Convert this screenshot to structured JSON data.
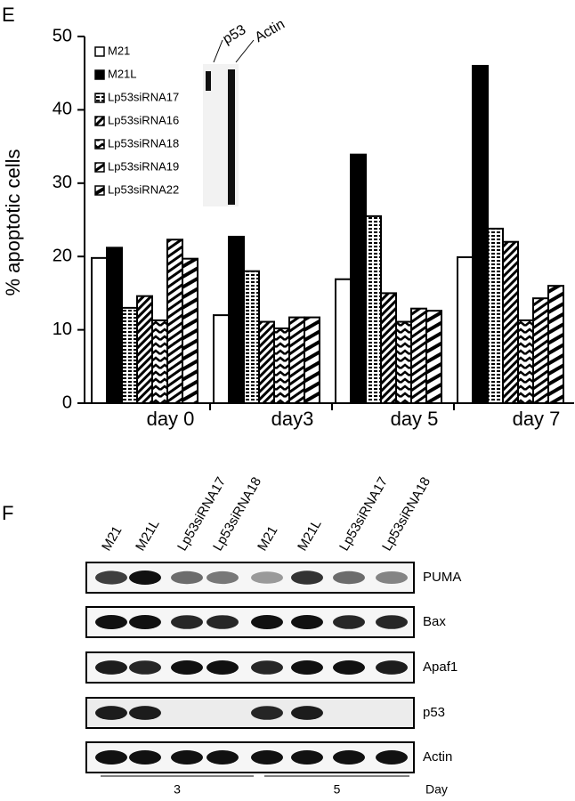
{
  "chart_data": {
    "type": "bar",
    "title": "E",
    "y_label": "% apoptotic cells",
    "categories": [
      "day 0",
      "day3",
      "day 5",
      "day 7"
    ],
    "series": [
      {
        "name": "M21",
        "color": "#ffffff",
        "values": [
          19.8,
          12.0,
          16.9,
          19.9
        ]
      },
      {
        "name": "M21L",
        "color": "#000000",
        "values": [
          21.2,
          22.7,
          33.9,
          46.0
        ]
      },
      {
        "name": "Lp53siRNA17",
        "color": "#000000",
        "hatch": "dots",
        "values": [
          13.0,
          18.0,
          25.5,
          23.8
        ]
      },
      {
        "name": "Lp53siRNA16",
        "color": "#000000",
        "hatch": "diagonal",
        "values": [
          14.6,
          11.1,
          15.0,
          22.0
        ]
      },
      {
        "name": "Lp53siRNA18",
        "color": "#000000",
        "hatch": "zigzag",
        "values": [
          11.3,
          10.2,
          11.1,
          11.3
        ]
      },
      {
        "name": "Lp53siRNA19",
        "color": "#000000",
        "hatch": "steep",
        "values": [
          22.3,
          11.7,
          12.9,
          14.3
        ]
      },
      {
        "name": "Lp53siRNA22",
        "color": "#000000",
        "hatch": "wide",
        "values": [
          19.7,
          11.7,
          12.6,
          16.0
        ]
      }
    ],
    "ylim": [
      0,
      50
    ],
    "yticks": [
      0,
      10,
      20,
      30,
      40,
      50
    ],
    "inset_labels": [
      "p53",
      "Actin"
    ]
  },
  "panel_f": {
    "title": "F",
    "lanes": [
      "M21",
      "M21L",
      "Lp53siRNA17",
      "Lp53siRNA18",
      "M21",
      "M21L",
      "Lp53siRNA17",
      "Lp53siRNA18"
    ],
    "blots": [
      "PUMA",
      "Bax",
      "Apaf1",
      "p53",
      "Actin"
    ],
    "groups": [
      "3",
      "5"
    ],
    "group_axis": "Day"
  }
}
